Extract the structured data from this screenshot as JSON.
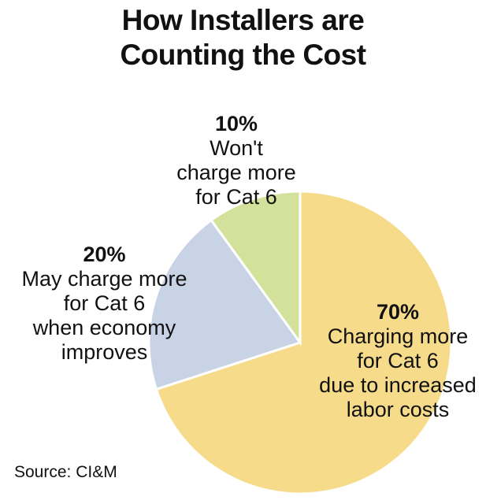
{
  "title": {
    "line1": "How Installers are",
    "line2": "Counting the Cost"
  },
  "chart_data": {
    "type": "pie",
    "title": "How Installers are Counting the Cost",
    "slices": [
      {
        "value": 70,
        "pct_label": "70%",
        "lines": [
          "Charging more",
          "for Cat 6",
          "due to increased",
          "labor costs"
        ],
        "color": "#f6dc8a"
      },
      {
        "value": 20,
        "pct_label": "20%",
        "lines": [
          "May charge more",
          "for Cat 6",
          "when economy",
          "improves"
        ],
        "color": "#c9d3e6"
      },
      {
        "value": 10,
        "pct_label": "10%",
        "lines": [
          "Won't",
          "charge more",
          "for Cat 6"
        ],
        "color": "#d3e19b"
      }
    ],
    "source": "Source: CI&M"
  }
}
